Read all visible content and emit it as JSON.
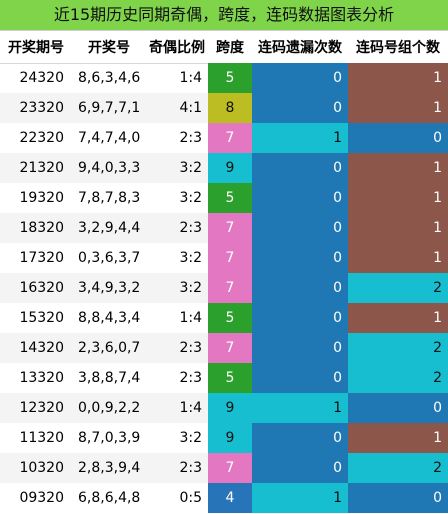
{
  "title": "近15期历史同期奇偶，跨度，连码数据图表分析",
  "headers": [
    "开奖期号",
    "开奖号",
    "奇偶比例",
    "跨度",
    "连码遗漏次数",
    "连码号组个数"
  ],
  "colors": {
    "title_bg": "#7fd44a",
    "span": {
      "4": "#2874b8",
      "5": "#2ca02c",
      "7": "#e377c2",
      "8": "#bcbd22",
      "9": "#17becf"
    },
    "miss": {
      "0": "#1f77b4",
      "1": "#17becf"
    },
    "groups": {
      "0": "#1f77b4",
      "1": "#8c564b",
      "2": "#17becf"
    }
  },
  "rows": [
    {
      "issue": "24320",
      "numbers": "8,6,3,4,6",
      "ratio": "1:4",
      "span": "5",
      "miss": "0",
      "groups": "1"
    },
    {
      "issue": "23320",
      "numbers": "6,9,7,7,1",
      "ratio": "4:1",
      "span": "8",
      "miss": "0",
      "groups": "1"
    },
    {
      "issue": "22320",
      "numbers": "7,4,7,4,0",
      "ratio": "2:3",
      "span": "7",
      "miss": "1",
      "groups": "0"
    },
    {
      "issue": "21320",
      "numbers": "9,4,0,3,3",
      "ratio": "3:2",
      "span": "9",
      "miss": "0",
      "groups": "1"
    },
    {
      "issue": "19320",
      "numbers": "7,8,7,8,3",
      "ratio": "3:2",
      "span": "5",
      "miss": "0",
      "groups": "1"
    },
    {
      "issue": "18320",
      "numbers": "3,2,9,4,4",
      "ratio": "2:3",
      "span": "7",
      "miss": "0",
      "groups": "1"
    },
    {
      "issue": "17320",
      "numbers": "0,3,6,3,7",
      "ratio": "3:2",
      "span": "7",
      "miss": "0",
      "groups": "1"
    },
    {
      "issue": "16320",
      "numbers": "3,4,9,3,2",
      "ratio": "3:2",
      "span": "7",
      "miss": "0",
      "groups": "2"
    },
    {
      "issue": "15320",
      "numbers": "8,8,4,3,4",
      "ratio": "1:4",
      "span": "5",
      "miss": "0",
      "groups": "1"
    },
    {
      "issue": "14320",
      "numbers": "2,3,6,0,7",
      "ratio": "2:3",
      "span": "7",
      "miss": "0",
      "groups": "2"
    },
    {
      "issue": "13320",
      "numbers": "3,8,8,7,4",
      "ratio": "2:3",
      "span": "5",
      "miss": "0",
      "groups": "2"
    },
    {
      "issue": "12320",
      "numbers": "0,0,9,2,2",
      "ratio": "1:4",
      "span": "9",
      "miss": "1",
      "groups": "0"
    },
    {
      "issue": "11320",
      "numbers": "8,7,0,3,9",
      "ratio": "3:2",
      "span": "9",
      "miss": "0",
      "groups": "1"
    },
    {
      "issue": "10320",
      "numbers": "2,8,3,9,4",
      "ratio": "2:3",
      "span": "7",
      "miss": "0",
      "groups": "2"
    },
    {
      "issue": "09320",
      "numbers": "6,8,6,4,8",
      "ratio": "0:5",
      "span": "4",
      "miss": "1",
      "groups": "0"
    }
  ]
}
